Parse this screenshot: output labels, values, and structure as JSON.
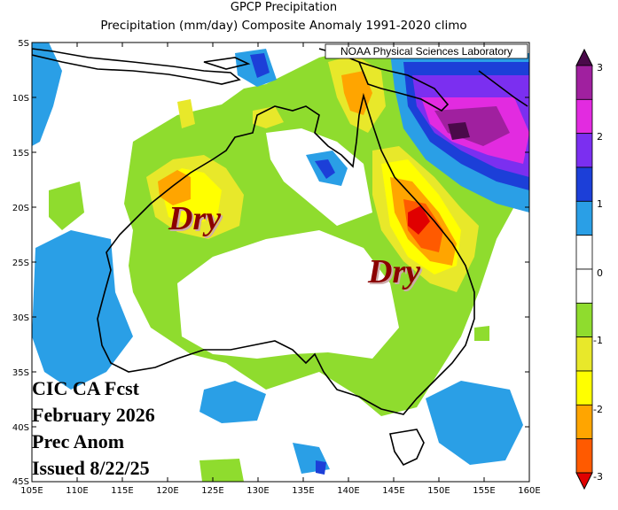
{
  "header": {
    "title": "GPCP Precipitation",
    "subtitle": "Precipitation (mm/day) Composite Anomaly 1991-2020 climo"
  },
  "map": {
    "credit": "NOAA Physical Sciences Laboratory",
    "lat_labels": [
      "5S",
      "10S",
      "15S",
      "20S",
      "25S",
      "30S",
      "35S",
      "40S",
      "45S"
    ],
    "lon_labels": [
      "105E",
      "110E",
      "115E",
      "120E",
      "125E",
      "130E",
      "135E",
      "140E",
      "145E",
      "150E",
      "155E",
      "160E"
    ],
    "annotations": {
      "dry_west": "Dry",
      "dry_east": "Dry"
    }
  },
  "forecast": {
    "line1": "CIC CA Fcst",
    "line2": "February 2026",
    "line3": "Prec Anom",
    "line4": "Issued 8/22/25"
  },
  "colorbar": {
    "labels": [
      "3",
      "2",
      "1",
      "0",
      "-1",
      "-2",
      "-3"
    ],
    "colors": [
      "#4a0a4a",
      "#a0209f",
      "#e22be0",
      "#7b2ff0",
      "#1c3fd8",
      "#2a9fe6",
      "#ffffff",
      "#ffffff",
      "#8fdc2e",
      "#e8e82a",
      "#ffff00",
      "#ffa500",
      "#ff5a00",
      "#e00000"
    ]
  }
}
